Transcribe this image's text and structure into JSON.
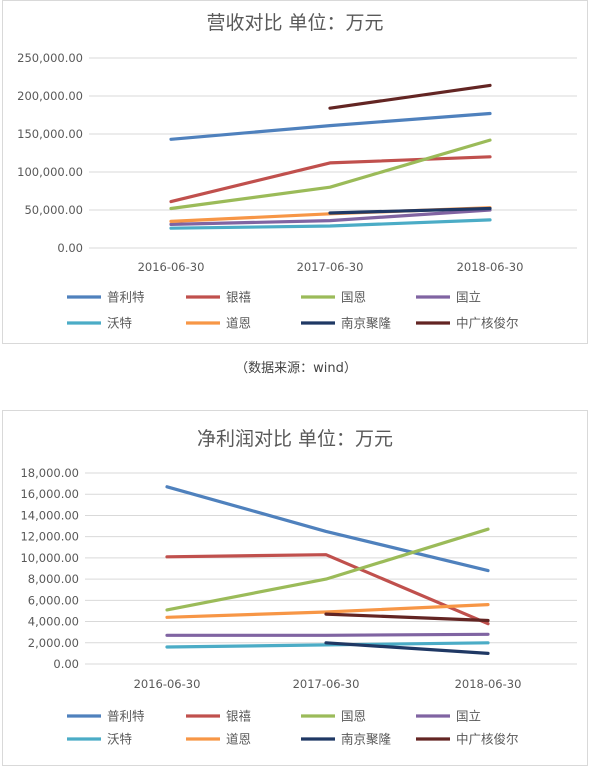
{
  "caption": "（数据来源：wind）",
  "colors": {
    "普利特": "#4f81bd",
    "银禧": "#c0504d",
    "国恩": "#9bbb59",
    "国立": "#8064a2",
    "沃特": "#4bacc6",
    "道恩": "#f79646",
    "南京聚隆": "#1f3864",
    "中广核俊尔": "#632523"
  },
  "chart_data": [
    {
      "type": "line",
      "title": "营收对比 单位：万元",
      "xlabel": "",
      "ylabel": "",
      "categories": [
        "2016-06-30",
        "2017-06-30",
        "2018-06-30"
      ],
      "ylim": [
        0,
        250000
      ],
      "yticks": [
        "250,000.00",
        "200,000.00",
        "150,000.00",
        "100,000.00",
        "50,000.00",
        "0.00"
      ],
      "ytick_values": [
        250000,
        200000,
        150000,
        100000,
        50000,
        0
      ],
      "legend": "bottom",
      "grid": true,
      "series": [
        {
          "name": "普利特",
          "values": [
            143000,
            161000,
            177000
          ]
        },
        {
          "name": "银禧",
          "values": [
            61000,
            112000,
            120000
          ]
        },
        {
          "name": "国恩",
          "values": [
            52000,
            80000,
            142000
          ]
        },
        {
          "name": "国立",
          "values": [
            31000,
            36000,
            50000
          ]
        },
        {
          "name": "沃特",
          "values": [
            26000,
            29000,
            37000
          ]
        },
        {
          "name": "道恩",
          "values": [
            35000,
            45000,
            53000
          ]
        },
        {
          "name": "南京聚隆",
          "values": [
            null,
            46000,
            52000
          ]
        },
        {
          "name": "中广核俊尔",
          "values": [
            null,
            184000,
            214000
          ]
        }
      ]
    },
    {
      "type": "line",
      "title": "净利润对比 单位：万元",
      "xlabel": "",
      "ylabel": "",
      "categories": [
        "2016-06-30",
        "2017-06-30",
        "2018-06-30"
      ],
      "ylim": [
        0,
        18000
      ],
      "yticks": [
        "18,000.00",
        "16,000.00",
        "14,000.00",
        "12,000.00",
        "10,000.00",
        "8,000.00",
        "6,000.00",
        "4,000.00",
        "2,000.00",
        "0.00"
      ],
      "ytick_values": [
        18000,
        16000,
        14000,
        12000,
        10000,
        8000,
        6000,
        4000,
        2000,
        0
      ],
      "legend": "bottom",
      "grid": true,
      "series": [
        {
          "name": "普利特",
          "values": [
            16700,
            12500,
            8800
          ]
        },
        {
          "name": "银禧",
          "values": [
            10100,
            10300,
            3800
          ]
        },
        {
          "name": "国恩",
          "values": [
            5100,
            8000,
            12700
          ]
        },
        {
          "name": "国立",
          "values": [
            2700,
            2700,
            2800
          ]
        },
        {
          "name": "沃特",
          "values": [
            1600,
            1800,
            2000
          ]
        },
        {
          "name": "道恩",
          "values": [
            4400,
            4900,
            5600
          ]
        },
        {
          "name": "南京聚隆",
          "values": [
            null,
            2000,
            1000
          ]
        },
        {
          "name": "中广核俊尔",
          "values": [
            null,
            4700,
            4100
          ]
        }
      ]
    }
  ]
}
